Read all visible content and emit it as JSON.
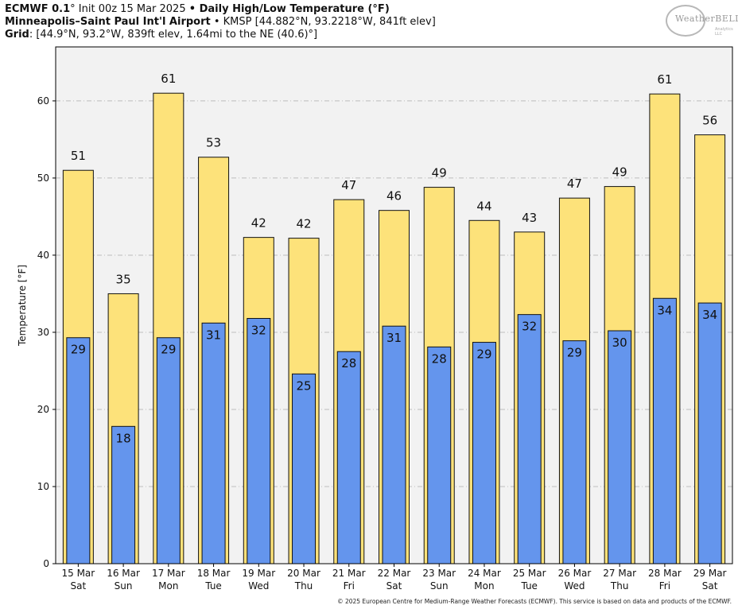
{
  "header": {
    "line1_model": "ECMWF 0.1",
    "line1_deg": "°",
    "line1_init": " Init 00z 15 Mar 2025 ",
    "line1_bullet": "•",
    "line1_title": " Daily High/Low Temperature (°F)",
    "line2_station": "Minneapolis–Saint Paul Int'l Airport",
    "line2_detail": " • KMSP [44.882°N, 93.2218°W, 841ft elev]",
    "line3_label": "Grid",
    "line3_detail": ": [44.9°N, 93.2°W, 839ft elev, 1.64mi to the NE (40.6)°]"
  },
  "logo": {
    "text": "WeatherBELL",
    "sub": "Analytics LLC"
  },
  "footer": "© 2025 European Centre for Medium-Range Weather Forecasts (ECMWF). This service is based on data and products of the ECMWF.",
  "colors": {
    "high_bar": "#fde27a",
    "low_bar": "#6495ed",
    "plot_bg": "#f2f2f2",
    "grid": "#bdbdbd"
  },
  "chart_data": {
    "type": "bar",
    "title": "Daily High/Low Temperature (°F)",
    "xlabel": "",
    "ylabel": "Temperature [°F]",
    "ylim": [
      0,
      67
    ],
    "yticks": [
      0,
      10,
      20,
      30,
      40,
      50,
      60
    ],
    "grid": true,
    "categories": [
      {
        "date": "15 Mar",
        "day": "Sat"
      },
      {
        "date": "16 Mar",
        "day": "Sun"
      },
      {
        "date": "17 Mar",
        "day": "Mon"
      },
      {
        "date": "18 Mar",
        "day": "Tue"
      },
      {
        "date": "19 Mar",
        "day": "Wed"
      },
      {
        "date": "20 Mar",
        "day": "Thu"
      },
      {
        "date": "21 Mar",
        "day": "Fri"
      },
      {
        "date": "22 Mar",
        "day": "Sat"
      },
      {
        "date": "23 Mar",
        "day": "Sun"
      },
      {
        "date": "24 Mar",
        "day": "Mon"
      },
      {
        "date": "25 Mar",
        "day": "Tue"
      },
      {
        "date": "26 Mar",
        "day": "Wed"
      },
      {
        "date": "27 Mar",
        "day": "Thu"
      },
      {
        "date": "28 Mar",
        "day": "Fri"
      },
      {
        "date": "29 Mar",
        "day": "Sat"
      }
    ],
    "series": [
      {
        "name": "High",
        "values": [
          51,
          35,
          61,
          52.7,
          42.3,
          42.2,
          47.2,
          45.8,
          48.8,
          44.5,
          43.0,
          47.4,
          48.9,
          60.9,
          55.6
        ],
        "labels": [
          "51",
          "35",
          "61",
          "53",
          "42",
          "42",
          "47",
          "46",
          "49",
          "44",
          "43",
          "47",
          "49",
          "61",
          "56"
        ]
      },
      {
        "name": "Low",
        "values": [
          29.3,
          17.8,
          29.3,
          31.2,
          31.8,
          24.6,
          27.5,
          30.8,
          28.1,
          28.7,
          32.3,
          28.9,
          30.2,
          34.4,
          33.8
        ],
        "labels": [
          "29",
          "18",
          "29",
          "31",
          "32",
          "25",
          "28",
          "31",
          "28",
          "29",
          "32",
          "29",
          "30",
          "34",
          "34"
        ]
      }
    ]
  }
}
